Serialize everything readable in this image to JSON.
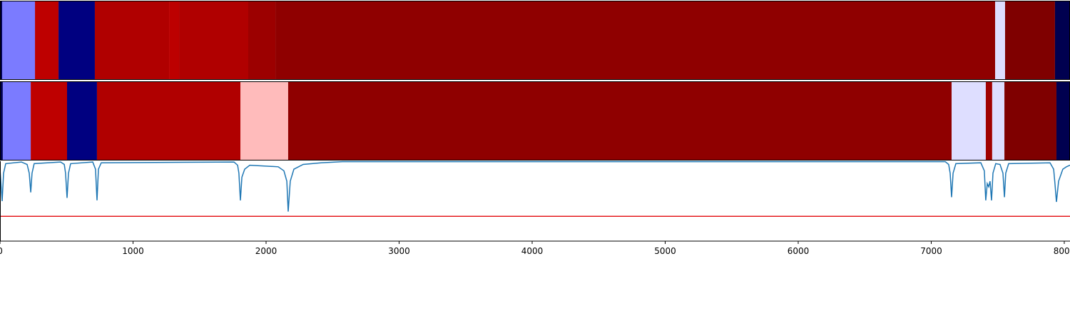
{
  "chart_data": [
    {
      "type": "heatmap",
      "xlim": [
        0,
        8043
      ],
      "edges": [
        0,
        16,
        263,
        440,
        713,
        1271,
        1346,
        1866,
        2070,
        7480,
        7555,
        7930,
        8043
      ],
      "colors": [
        "#000050",
        "#7b7bff",
        "#be0000",
        "#000080",
        "#b00000",
        "#bc0000",
        "#b00000",
        "#9c0000",
        "#8f0000",
        "#dedeff",
        "#7f0000",
        "#000050"
      ]
    },
    {
      "type": "heatmap",
      "xlim": [
        0,
        8043
      ],
      "edges": [
        0,
        21,
        231,
        504,
        729,
        1807,
        2166,
        7153,
        7410,
        7458,
        7550,
        7941,
        8043
      ],
      "colors": [
        "#000050",
        "#7b7bff",
        "#be0000",
        "#000080",
        "#b00000",
        "#ffbbbb",
        "#8f0000",
        "#dedeff",
        "#a00000",
        "#dedeff",
        "#7f0000",
        "#000050"
      ]
    },
    {
      "type": "line",
      "xlim": [
        0,
        8043
      ],
      "ylim": [
        0,
        1
      ],
      "color": "#1f77b4",
      "xticks": [
        0,
        1000,
        2000,
        3000,
        4000,
        5000,
        6000,
        7000,
        8000
      ],
      "threshold": 0.31,
      "threshold_color": "#e41a1c",
      "x": [
        0,
        16,
        27,
        43,
        161,
        204,
        220,
        231,
        241,
        257,
        456,
        483,
        493,
        504,
        515,
        531,
        697,
        718,
        729,
        740,
        761,
        1759,
        1786,
        1796,
        1807,
        1818,
        1839,
        1877,
        2091,
        2134,
        2156,
        2166,
        2182,
        2209,
        2279,
        2413,
        2574,
        7105,
        7131,
        7142,
        7153,
        7164,
        7185,
        7373,
        7399,
        7410,
        7421,
        7432,
        7442,
        7453,
        7464,
        7485,
        7517,
        7539,
        7550,
        7560,
        7582,
        7893,
        7920,
        7930,
        7941,
        7957,
        7989,
        8016,
        8043
      ],
      "y": [
        0.9,
        0.5,
        0.85,
        0.97,
        0.99,
        0.96,
        0.85,
        0.61,
        0.85,
        0.97,
        0.99,
        0.96,
        0.85,
        0.54,
        0.85,
        0.97,
        0.99,
        0.9,
        0.51,
        0.9,
        0.98,
        0.99,
        0.95,
        0.85,
        0.51,
        0.8,
        0.9,
        0.95,
        0.93,
        0.88,
        0.75,
        0.37,
        0.75,
        0.9,
        0.96,
        0.98,
        0.995,
        0.995,
        0.96,
        0.85,
        0.55,
        0.85,
        0.97,
        0.98,
        0.88,
        0.51,
        0.72,
        0.68,
        0.75,
        0.51,
        0.85,
        0.97,
        0.96,
        0.85,
        0.55,
        0.85,
        0.97,
        0.98,
        0.9,
        0.72,
        0.49,
        0.75,
        0.9,
        0.93,
        0.95
      ]
    }
  ]
}
